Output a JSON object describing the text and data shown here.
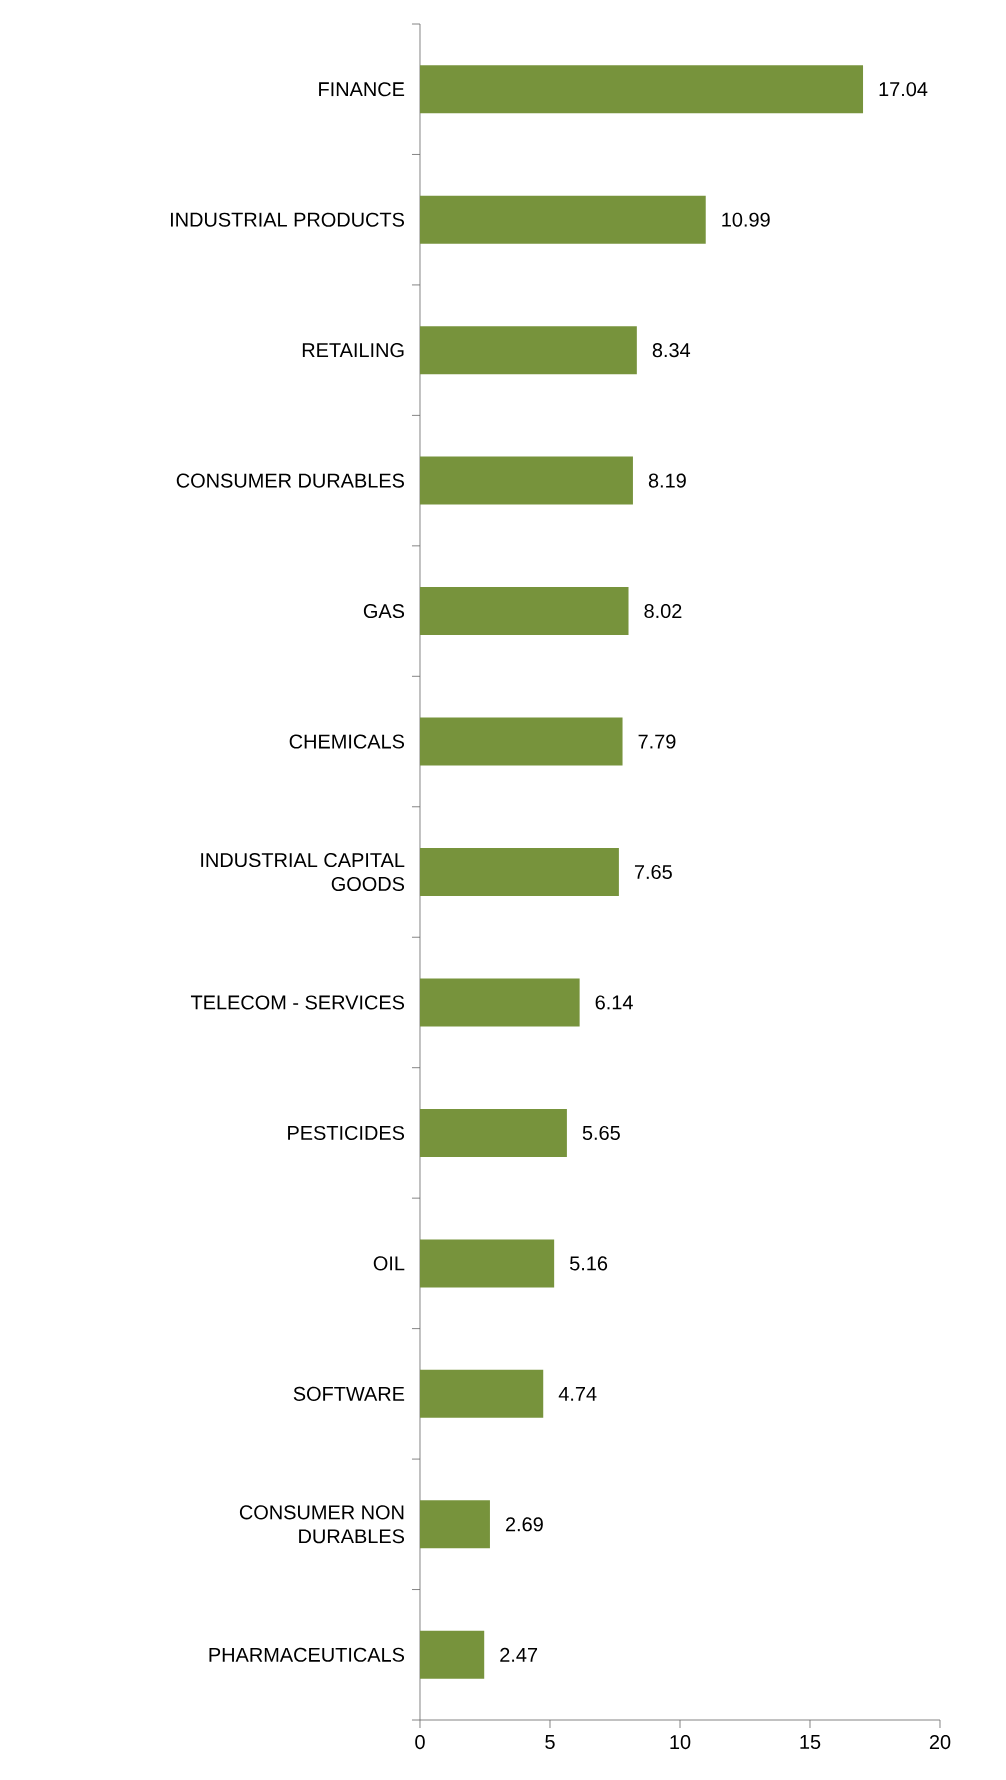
{
  "chart_data": {
    "type": "bar",
    "orientation": "horizontal",
    "categories": [
      "FINANCE",
      "INDUSTRIAL PRODUCTS",
      "RETAILING",
      "CONSUMER DURABLES",
      "GAS",
      "CHEMICALS",
      "INDUSTRIAL CAPITAL GOODS",
      "TELECOM - SERVICES",
      "PESTICIDES",
      "OIL",
      "SOFTWARE",
      "CONSUMER NON DURABLES",
      "PHARMACEUTICALS"
    ],
    "values": [
      17.04,
      10.99,
      8.34,
      8.19,
      8.02,
      7.79,
      7.65,
      6.14,
      5.65,
      5.16,
      4.74,
      2.69,
      2.47
    ],
    "color": "#77933c",
    "xlim": [
      0,
      20
    ],
    "xticks": [
      0,
      5,
      10,
      15,
      20
    ],
    "data_labels": true
  }
}
